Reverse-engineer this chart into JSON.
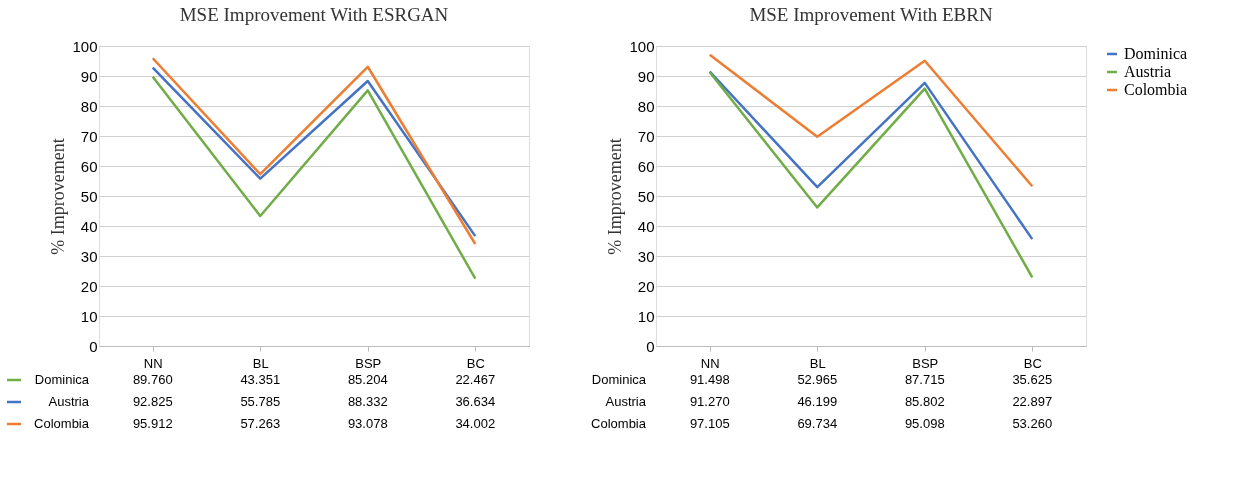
{
  "chart_data": [
    {
      "type": "line",
      "title": "MSE Improvement With ESRGAN",
      "ylabel": "% Improvement",
      "categories": [
        "NN",
        "BL",
        "BSP",
        "BC"
      ],
      "ylim": [
        0,
        100
      ],
      "yticks": [
        0,
        10,
        20,
        30,
        40,
        50,
        60,
        70,
        80,
        90,
        100
      ],
      "grid": "y",
      "legend": "bottom left",
      "line_style": "solid",
      "marker": "none",
      "series": [
        {
          "name": "Dominica",
          "color": "#70ad47",
          "values": [
            89.76,
            43.351,
            85.204,
            22.467
          ],
          "value_labels": [
            "89.760",
            "43.351",
            "85.204",
            "22.467"
          ]
        },
        {
          "name": "Austria",
          "color": "#4472c4",
          "values": [
            92.825,
            55.785,
            88.332,
            36.634
          ],
          "value_labels": [
            "92.825",
            "55.785",
            "88.332",
            "36.634"
          ]
        },
        {
          "name": "Colombia",
          "color": "#ed7d31",
          "values": [
            95.912,
            57.263,
            93.078,
            34.002
          ],
          "value_labels": [
            "95.912",
            "57.263",
            "93.078",
            "34.002"
          ]
        }
      ]
    },
    {
      "type": "line",
      "title": "MSE Improvement With EBRN",
      "ylabel": "% Improvement",
      "categories": [
        "NN",
        "BL",
        "BSP",
        "BC"
      ],
      "ylim": [
        0,
        100
      ],
      "yticks": [
        0,
        10,
        20,
        30,
        40,
        50,
        60,
        70,
        80,
        90,
        100
      ],
      "grid": "y",
      "legend": "right",
      "line_style": "solid",
      "marker": "none",
      "series": [
        {
          "name": "Dominica",
          "color": "#4472c4",
          "values": [
            91.498,
            52.965,
            87.715,
            35.625
          ],
          "value_labels": [
            "91.498",
            "52.965",
            "87.715",
            "35.625"
          ]
        },
        {
          "name": "Austria",
          "color": "#70ad47",
          "values": [
            91.27,
            46.199,
            85.802,
            22.897
          ],
          "value_labels": [
            "91.270",
            "46.199",
            "85.802",
            "22.897"
          ]
        },
        {
          "name": "Colombia",
          "color": "#ed7d31",
          "values": [
            97.105,
            69.734,
            95.098,
            53.26
          ],
          "value_labels": [
            "97.105",
            "69.734",
            "95.098",
            "53.260"
          ]
        }
      ]
    }
  ]
}
